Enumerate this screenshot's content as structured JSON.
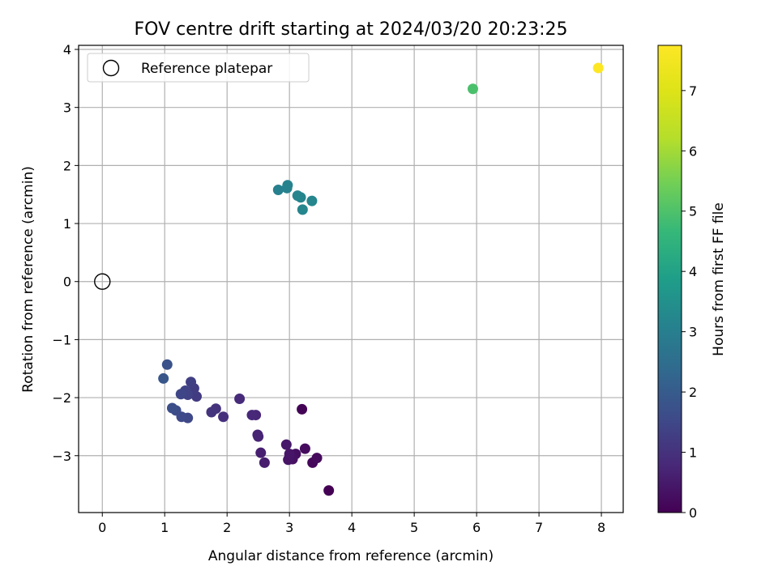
{
  "chart_data": {
    "type": "scatter",
    "title": "FOV centre drift starting at 2024/03/20 20:23:25",
    "xlabel": "Angular distance from reference (arcmin)",
    "ylabel": "Rotation from reference (arcmin)",
    "xlim": [
      -0.38,
      8.35
    ],
    "ylim": [
      -3.98,
      4.07
    ],
    "xticks": [
      0,
      1,
      2,
      3,
      4,
      5,
      6,
      7,
      8
    ],
    "yticks": [
      -3,
      -2,
      -1,
      0,
      1,
      2,
      3,
      4
    ],
    "grid": true,
    "legend": {
      "placement": "upper-left",
      "label": "Reference platepar"
    },
    "reference_point": {
      "x": 0,
      "y": 0
    },
    "colorbar": {
      "label": "Hours from first FF file",
      "colormap": "viridis",
      "range": [
        0,
        7.75
      ],
      "ticks": [
        0,
        1,
        2,
        3,
        4,
        5,
        6,
        7
      ]
    },
    "points": [
      {
        "x": 3.63,
        "y": -3.6,
        "c": 0.0
      },
      {
        "x": 3.2,
        "y": -2.2,
        "c": 0.05
      },
      {
        "x": 3.37,
        "y": -3.12,
        "c": 0.12
      },
      {
        "x": 3.44,
        "y": -3.04,
        "c": 0.18
      },
      {
        "x": 3.25,
        "y": -2.88,
        "c": 0.22
      },
      {
        "x": 3.1,
        "y": -2.97,
        "c": 0.28
      },
      {
        "x": 3.05,
        "y": -3.06,
        "c": 0.32
      },
      {
        "x": 2.98,
        "y": -3.07,
        "c": 0.36
      },
      {
        "x": 3.0,
        "y": -2.97,
        "c": 0.4
      },
      {
        "x": 2.95,
        "y": -2.81,
        "c": 0.45
      },
      {
        "x": 2.6,
        "y": -3.12,
        "c": 0.55
      },
      {
        "x": 2.54,
        "y": -2.95,
        "c": 0.6
      },
      {
        "x": 2.49,
        "y": -2.64,
        "c": 0.66
      },
      {
        "x": 2.5,
        "y": -2.67,
        "c": 0.7
      },
      {
        "x": 2.46,
        "y": -2.3,
        "c": 0.75
      },
      {
        "x": 2.4,
        "y": -2.3,
        "c": 0.8
      },
      {
        "x": 2.2,
        "y": -2.02,
        "c": 0.85
      },
      {
        "x": 1.94,
        "y": -2.33,
        "c": 0.95
      },
      {
        "x": 1.82,
        "y": -2.19,
        "c": 1.0
      },
      {
        "x": 1.75,
        "y": -2.25,
        "c": 1.05
      },
      {
        "x": 1.51,
        "y": -1.98,
        "c": 1.2
      },
      {
        "x": 1.47,
        "y": -1.84,
        "c": 1.25
      },
      {
        "x": 1.42,
        "y": -1.73,
        "c": 1.3
      },
      {
        "x": 1.37,
        "y": -1.95,
        "c": 1.35
      },
      {
        "x": 1.33,
        "y": -1.88,
        "c": 1.4
      },
      {
        "x": 1.26,
        "y": -1.94,
        "c": 1.45
      },
      {
        "x": 1.37,
        "y": -2.35,
        "c": 1.5
      },
      {
        "x": 1.27,
        "y": -2.33,
        "c": 1.55
      },
      {
        "x": 1.18,
        "y": -2.22,
        "c": 1.6
      },
      {
        "x": 1.12,
        "y": -2.18,
        "c": 1.65
      },
      {
        "x": 1.04,
        "y": -1.43,
        "c": 1.75
      },
      {
        "x": 0.98,
        "y": -1.67,
        "c": 1.85
      },
      {
        "x": 2.82,
        "y": 1.58,
        "c": 3.05
      },
      {
        "x": 2.96,
        "y": 1.61,
        "c": 3.1
      },
      {
        "x": 2.97,
        "y": 1.66,
        "c": 3.12
      },
      {
        "x": 3.13,
        "y": 1.48,
        "c": 3.15
      },
      {
        "x": 3.18,
        "y": 1.45,
        "c": 3.18
      },
      {
        "x": 3.36,
        "y": 1.39,
        "c": 3.2
      },
      {
        "x": 3.21,
        "y": 1.24,
        "c": 3.22
      },
      {
        "x": 5.94,
        "y": 3.32,
        "c": 4.95
      },
      {
        "x": 7.95,
        "y": 3.68,
        "c": 7.75
      }
    ]
  }
}
